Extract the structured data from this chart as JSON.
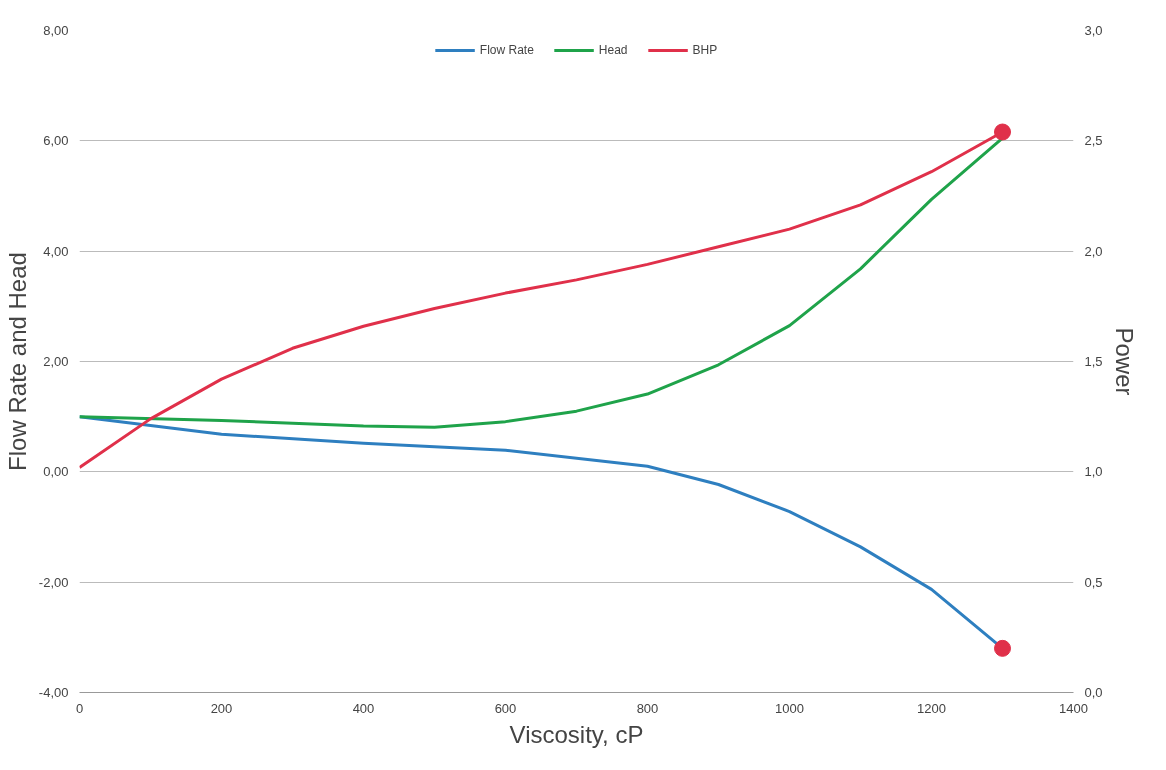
{
  "chart_data": {
    "type": "line",
    "xlabel": "Viscosity, cP",
    "ylabel": "Flow Rate and Head",
    "y2label": "Power",
    "xlim": [
      0,
      1400
    ],
    "xticks": [
      0,
      200,
      400,
      600,
      800,
      1000,
      1200,
      1400
    ],
    "ylim": [
      -4,
      8
    ],
    "yticks": [
      {
        "value": -4,
        "label": "-4,00"
      },
      {
        "value": -2,
        "label": "-2,00"
      },
      {
        "value": 0,
        "label": "0,00"
      },
      {
        "value": 2,
        "label": "2,00"
      },
      {
        "value": 4,
        "label": "4,00"
      },
      {
        "value": 6,
        "label": "6,00"
      },
      {
        "value": 8,
        "label": "8,00"
      }
    ],
    "y2lim": [
      0,
      3
    ],
    "y2ticks": [
      {
        "value": 0,
        "label": "0,0"
      },
      {
        "value": 0.5,
        "label": "0,5"
      },
      {
        "value": 1,
        "label": "1,0"
      },
      {
        "value": 1.5,
        "label": "1,5"
      },
      {
        "value": 2,
        "label": "2,0"
      },
      {
        "value": 2.5,
        "label": "2,5"
      },
      {
        "value": 3,
        "label": "3,0"
      }
    ],
    "grid": "y",
    "legend": "top",
    "marker": "none",
    "line_style": "solid",
    "series": [
      {
        "name": "Flow Rate",
        "color": "#2e7fc0",
        "x": [
          0,
          200,
          400,
          600,
          800,
          900,
          1000,
          1100,
          1200,
          1300
        ],
        "values": [
          1.0,
          0.68,
          0.52,
          0.39,
          0.1,
          -0.23,
          -0.72,
          -1.36,
          -2.13,
          -3.2
        ]
      },
      {
        "name": "Head",
        "color": "#1fa34a",
        "x": [
          0,
          200,
          400,
          500,
          600,
          700,
          800,
          900,
          1000,
          1100,
          1200,
          1300
        ],
        "values": [
          1.0,
          0.93,
          0.83,
          0.81,
          0.91,
          1.1,
          1.41,
          1.94,
          2.65,
          3.68,
          4.94,
          6.05
        ]
      },
      {
        "name": "BHP",
        "color": "#e0304a",
        "axis": "y2",
        "x": [
          0,
          100,
          200,
          300,
          400,
          500,
          600,
          700,
          800,
          900,
          1000,
          1100,
          1200,
          1300
        ],
        "values": [
          1.02,
          1.24,
          1.42,
          1.56,
          1.66,
          1.74,
          1.81,
          1.87,
          1.94,
          2.02,
          2.1,
          2.21,
          2.36,
          2.54
        ]
      },
      {
        "type": "scatter",
        "marker": "circle",
        "color": "#e0304a",
        "axis": "y2",
        "x": [
          1300,
          1300
        ],
        "values": [
          2.54,
          0.2
        ]
      }
    ]
  }
}
